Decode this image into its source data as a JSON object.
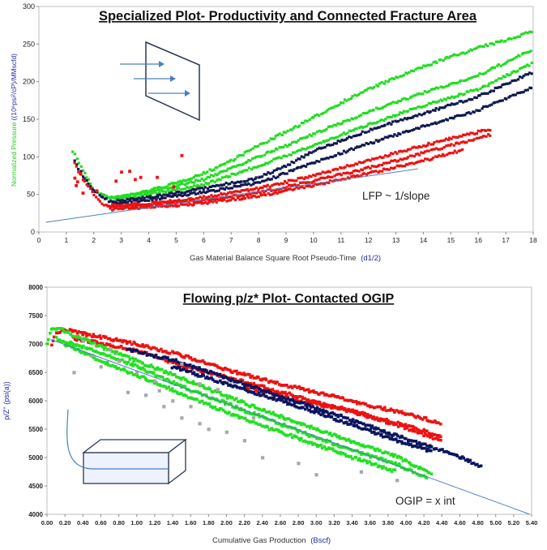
{
  "chart_data": [
    {
      "type": "scatter",
      "title": "Specialized Plot- Productivity and Connected Fracture Area",
      "xlabel": "Gas Material Balance Square Root Pseudo-Time",
      "xlabel_unit": "(d1/2)",
      "ylabel_prefix": "Normalized Pressure ",
      "ylabel_unit": "((10⁶psi²/cP)/MMscfd)",
      "xlim": [
        0,
        18
      ],
      "ylim": [
        0,
        300
      ],
      "x_ticks": [
        "0",
        "1",
        "2",
        "3",
        "4",
        "5",
        "6",
        "7",
        "8",
        "9",
        "10",
        "11",
        "12",
        "13",
        "14",
        "15",
        "16",
        "17",
        "18"
      ],
      "y_ticks": [
        "0",
        "50",
        "100",
        "150",
        "200",
        "250",
        "300"
      ],
      "annotation": "LFP ~ 1/slope",
      "colors": {
        "green": "#22dd22",
        "navy": "#101a50",
        "red": "#ee1111",
        "line": "#4a7fc0"
      },
      "series": [
        {
          "color": "green",
          "points": [
            [
              1.25,
              108
            ],
            [
              1.6,
              82
            ],
            [
              2,
              55
            ],
            [
              2.6,
              45
            ],
            [
              3,
              47
            ],
            [
              4,
              55
            ],
            [
              5,
              65
            ],
            [
              6,
              78
            ],
            [
              7,
              95
            ],
            [
              8,
              115
            ],
            [
              9,
              133
            ],
            [
              10,
              152
            ],
            [
              11,
              172
            ],
            [
              12,
              190
            ],
            [
              13,
              205
            ],
            [
              14,
              220
            ],
            [
              15,
              233
            ],
            [
              16,
              245
            ],
            [
              17,
              255
            ],
            [
              18,
              268
            ]
          ]
        },
        {
          "color": "green",
          "points": [
            [
              2.6,
              45
            ],
            [
              4,
              53
            ],
            [
              6,
              70
            ],
            [
              8,
              100
            ],
            [
              10,
              130
            ],
            [
              12,
              160
            ],
            [
              14,
              185
            ],
            [
              16,
              208
            ],
            [
              18,
              243
            ]
          ]
        },
        {
          "color": "green",
          "points": [
            [
              2.8,
              42
            ],
            [
              4,
              50
            ],
            [
              6,
              63
            ],
            [
              8,
              88
            ],
            [
              10,
              115
            ],
            [
              12,
              143
            ],
            [
              14,
              168
            ],
            [
              16,
              190
            ],
            [
              18,
              225
            ]
          ]
        },
        {
          "color": "navy",
          "points": [
            [
              1.3,
              95
            ],
            [
              1.6,
              75
            ],
            [
              2,
              55
            ],
            [
              2.6,
              40
            ],
            [
              4,
              46
            ],
            [
              6,
              58
            ],
            [
              8,
              72
            ],
            [
              9,
              88
            ],
            [
              10,
              108
            ],
            [
              12,
              135
            ],
            [
              14,
              158
            ],
            [
              16,
              180
            ],
            [
              18,
              213
            ]
          ]
        },
        {
          "color": "navy",
          "points": [
            [
              2.7,
              38
            ],
            [
              4,
              43
            ],
            [
              6,
              53
            ],
            [
              8,
              65
            ],
            [
              10,
              92
            ],
            [
              12,
              118
            ],
            [
              14,
              140
            ],
            [
              16,
              162
            ],
            [
              18,
              193
            ]
          ]
        },
        {
          "color": "red",
          "points": [
            [
              1.3,
              92
            ],
            [
              1.6,
              70
            ],
            [
              2,
              50
            ],
            [
              2.3,
              38
            ],
            [
              2.6,
              35
            ],
            [
              4,
              38
            ],
            [
              6,
              46
            ],
            [
              8,
              58
            ],
            [
              10,
              75
            ],
            [
              12,
              95
            ],
            [
              14,
              115
            ],
            [
              16,
              133
            ],
            [
              16.5,
              137
            ]
          ]
        },
        {
          "color": "red",
          "points": [
            [
              2.5,
              33
            ],
            [
              4,
              36
            ],
            [
              6,
              42
            ],
            [
              8,
              52
            ],
            [
              10,
              68
            ],
            [
              12,
              85
            ],
            [
              14,
              105
            ],
            [
              16,
              125
            ],
            [
              16.5,
              130
            ]
          ]
        },
        {
          "color": "red",
          "points": [
            [
              2.6,
              30
            ],
            [
              4,
              33
            ],
            [
              6,
              38
            ],
            [
              8,
              48
            ],
            [
              10,
              62
            ],
            [
              12,
              78
            ],
            [
              14,
              95
            ],
            [
              15.5,
              110
            ]
          ]
        }
      ],
      "scatter_outliers": {
        "color": "red",
        "points": [
          [
            1.3,
            72
          ],
          [
            1.35,
            62
          ],
          [
            1.4,
            67
          ],
          [
            1.5,
            78
          ],
          [
            2.8,
            68
          ],
          [
            3,
            80
          ],
          [
            3.3,
            81
          ],
          [
            3.5,
            70
          ],
          [
            3.7,
            73
          ],
          [
            4.3,
            73
          ],
          [
            4.9,
            60
          ],
          [
            5.2,
            102
          ],
          [
            1.6,
            52
          ],
          [
            2.1,
            55
          ]
        ]
      },
      "trend_line": {
        "points": [
          [
            0.25,
            13
          ],
          [
            13.8,
            84
          ]
        ]
      }
    },
    {
      "type": "scatter",
      "title": "Flowing p/z* Plot- Contacted OGIP",
      "xlabel": "Cumulative Gas Production",
      "xlabel_unit": "(Bscf)",
      "ylabel": "p/Z''  (psi(a))",
      "xlim": [
        0,
        5.4
      ],
      "ylim": [
        4000,
        8000
      ],
      "x_ticks": [
        "0.00",
        "0.20",
        "0.40",
        "0.60",
        "0.80",
        "1.00",
        "1.20",
        "1.40",
        "1.60",
        "1.80",
        "2.00",
        "2.20",
        "2.40",
        "2.60",
        "2.80",
        "3.00",
        "3.20",
        "3.40",
        "3.60",
        "3.80",
        "4.00",
        "4.20",
        "4.40",
        "4.60",
        "4.80",
        "5.00",
        "5.20",
        "5.40"
      ],
      "y_ticks": [
        "4000",
        "4500",
        "5000",
        "5500",
        "6000",
        "6500",
        "7000",
        "7500",
        "8000"
      ],
      "annotation": "OGIP = x int",
      "colors": {
        "green": "#22e022",
        "navy": "#0a1560",
        "red": "#ee1111",
        "gray": "#a8a8a8",
        "line": "#4a7fc0"
      },
      "series": [
        {
          "color": "red",
          "points": [
            [
              0.05,
              7000
            ],
            [
              0.1,
              7200
            ],
            [
              0.2,
              7250
            ],
            [
              0.5,
              7150
            ],
            [
              1,
              7000
            ],
            [
              1.5,
              6800
            ],
            [
              2,
              6550
            ],
            [
              2.5,
              6330
            ],
            [
              3,
              6150
            ],
            [
              3.5,
              5950
            ],
            [
              4,
              5780
            ],
            [
              4.4,
              5600
            ]
          ]
        },
        {
          "color": "red",
          "points": [
            [
              0.3,
              7100
            ],
            [
              1,
              6880
            ],
            [
              1.5,
              6620
            ],
            [
              2,
              6420
            ],
            [
              2.5,
              6200
            ],
            [
              3,
              5980
            ],
            [
              3.5,
              5780
            ],
            [
              4,
              5560
            ],
            [
              4.4,
              5380
            ]
          ]
        },
        {
          "color": "red",
          "points": [
            [
              2.2,
              6250
            ],
            [
              2.8,
              6000
            ],
            [
              3.3,
              5850
            ],
            [
              3.8,
              5620
            ],
            [
              4.4,
              5300
            ]
          ]
        },
        {
          "color": "navy",
          "points": [
            [
              0.9,
              6900
            ],
            [
              1.4,
              6720
            ],
            [
              2,
              6400
            ],
            [
              2.5,
              6130
            ],
            [
              3,
              5870
            ],
            [
              3.5,
              5600
            ],
            [
              4,
              5330
            ],
            [
              4.4,
              5120
            ],
            [
              4.7,
              4950
            ],
            [
              4.85,
              4820
            ]
          ]
        },
        {
          "color": "navy",
          "points": [
            [
              1.4,
              6600
            ],
            [
              2,
              6300
            ],
            [
              2.5,
              6050
            ],
            [
              3,
              5800
            ],
            [
              3.5,
              5520
            ],
            [
              4,
              5250
            ],
            [
              4.3,
              5100
            ]
          ]
        },
        {
          "color": "green",
          "points": [
            [
              0,
              7000
            ],
            [
              0.05,
              7250
            ],
            [
              0.12,
              7280
            ],
            [
              0.3,
              7150
            ],
            [
              0.6,
              6950
            ],
            [
              1,
              6700
            ],
            [
              1.5,
              6400
            ],
            [
              2,
              6080
            ],
            [
              2.5,
              5780
            ],
            [
              3,
              5500
            ],
            [
              3.5,
              5220
            ],
            [
              3.9,
              5020
            ],
            [
              4.3,
              4700
            ]
          ]
        },
        {
          "color": "green",
          "points": [
            [
              0.1,
              7100
            ],
            [
              0.5,
              6900
            ],
            [
              1,
              6600
            ],
            [
              1.5,
              6250
            ],
            [
              2,
              5950
            ],
            [
              2.5,
              5650
            ],
            [
              3,
              5350
            ],
            [
              3.5,
              5080
            ],
            [
              3.9,
              4880
            ],
            [
              4.25,
              4620
            ]
          ]
        },
        {
          "color": "green",
          "points": [
            [
              0.2,
              7000
            ],
            [
              0.6,
              6700
            ],
            [
              1,
              6450
            ],
            [
              1.5,
              6120
            ],
            [
              2,
              5800
            ],
            [
              2.5,
              5500
            ],
            [
              3,
              5230
            ],
            [
              3.5,
              4950
            ],
            [
              3.9,
              4750
            ]
          ]
        }
      ],
      "scatter_outliers": {
        "color": "gray",
        "points": [
          [
            0.3,
            6500
          ],
          [
            0.5,
            6800
          ],
          [
            0.6,
            6600
          ],
          [
            0.7,
            6900
          ],
          [
            0.8,
            6700
          ],
          [
            1,
            6500
          ],
          [
            1.1,
            6100
          ],
          [
            1.2,
            6350
          ],
          [
            1.3,
            5900
          ],
          [
            1.4,
            6000
          ],
          [
            1.5,
            5700
          ],
          [
            1.6,
            5900
          ],
          [
            1.7,
            5600
          ],
          [
            1.8,
            5500
          ],
          [
            2,
            5450
          ],
          [
            2.2,
            5300
          ],
          [
            2.4,
            5000
          ],
          [
            2.8,
            4900
          ],
          [
            3,
            4700
          ],
          [
            3.5,
            4750
          ],
          [
            3.9,
            4600
          ],
          [
            1.7,
            6300
          ],
          [
            1.9,
            6200
          ],
          [
            2.3,
            5700
          ],
          [
            0.4,
            7050
          ],
          [
            1.25,
            6180
          ],
          [
            0.9,
            6150
          ],
          [
            1.5,
            6650
          ]
        ]
      },
      "trend_line": {
        "points": [
          [
            0.04,
            7080
          ],
          [
            5.38,
            4000
          ]
        ]
      }
    }
  ]
}
